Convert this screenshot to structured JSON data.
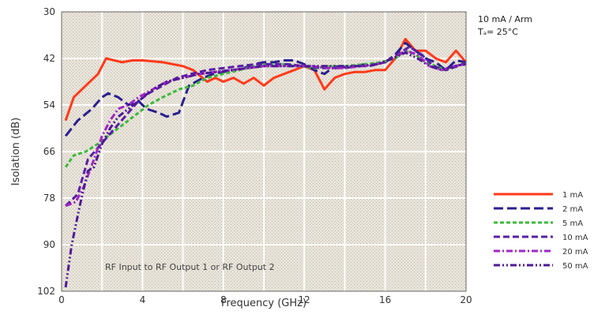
{
  "chart_data": {
    "type": "line",
    "xlabel": "Frequency (GHz)",
    "ylabel": "Isolation (dB)",
    "xlim": [
      0,
      20
    ],
    "ylim": [
      30,
      102
    ],
    "y_reversed": true,
    "x_ticks": [
      0,
      4,
      8,
      12,
      16,
      20
    ],
    "y_ticks": [
      30,
      42,
      54,
      66,
      78,
      90,
      102
    ],
    "grid": true,
    "legend_position": "right",
    "annotation": "RF Input to RF Output 1 or RF Output 2",
    "conditions": [
      "10 mA / Arm",
      "Tₐ= 25°C"
    ],
    "series": [
      {
        "name": "1 mA",
        "color": "#ff3a1a",
        "dash": "solid",
        "x": [
          0.2,
          0.6,
          1.2,
          1.8,
          2.2,
          3,
          3.5,
          4,
          5,
          6,
          6.5,
          7.2,
          7.6,
          8,
          8.5,
          9,
          9.5,
          10,
          10.5,
          11,
          11.5,
          12,
          12.5,
          13,
          13.5,
          14,
          14.5,
          15,
          15.5,
          16,
          16.5,
          17,
          17.5,
          18,
          18.5,
          19,
          19.5,
          20
        ],
        "y": [
          58,
          52,
          49,
          46,
          42,
          43,
          42.5,
          42.5,
          43,
          44,
          45,
          48,
          47,
          48,
          47,
          48.5,
          47,
          49,
          47,
          46,
          45,
          44,
          45,
          50,
          47,
          46,
          45.5,
          45.5,
          45,
          45,
          42,
          37,
          40,
          40,
          42,
          43,
          40,
          43
        ]
      },
      {
        "name": "2 mA",
        "color": "#2a1f8f",
        "dash": "long-dash",
        "x": [
          0.2,
          0.8,
          1.5,
          2,
          2.3,
          2.8,
          3.3,
          3.8,
          4.2,
          4.8,
          5.2,
          5.8,
          6.3,
          7,
          7.5,
          8,
          8.5,
          9,
          9.5,
          10,
          10.5,
          11,
          11.5,
          12,
          12.5,
          13,
          13.5,
          14,
          14.5,
          15,
          15.5,
          16,
          16.5,
          17,
          17.5,
          18,
          18.5,
          19,
          19.5,
          20
        ],
        "y": [
          62,
          58,
          55,
          52,
          51,
          52,
          54,
          53,
          55,
          56,
          57,
          56,
          49,
          47,
          46,
          45.5,
          45,
          44.5,
          43.5,
          43,
          43,
          42.5,
          42.5,
          43.5,
          45,
          46,
          44,
          44.5,
          44,
          43.5,
          43.5,
          43,
          41,
          38,
          40,
          42,
          43,
          45,
          42.5,
          43
        ]
      },
      {
        "name": "5 mA",
        "color": "#3cb93c",
        "dash": "short-dash",
        "x": [
          0.2,
          0.6,
          1.2,
          1.8,
          2.3,
          2.8,
          3.3,
          3.8,
          4.3,
          5,
          5.8,
          6.5,
          7.2,
          8,
          8.8,
          9.5,
          10.2,
          11,
          11.8,
          12.5,
          13.3,
          14,
          15,
          15.8,
          16.5,
          17,
          17.5,
          18,
          18.5,
          19,
          19.5,
          20
        ],
        "y": [
          70,
          67,
          66,
          64,
          62,
          60,
          58,
          56,
          54,
          52,
          50,
          49,
          47,
          46,
          45,
          44,
          43.5,
          43.5,
          44,
          44.5,
          44,
          44,
          43.5,
          43,
          42,
          40,
          41,
          43,
          44,
          45,
          44,
          43
        ]
      },
      {
        "name": "10 mA",
        "color": "#5a1fa6",
        "dash": "medium-dash",
        "x": [
          0.2,
          0.8,
          1.3,
          1.8,
          2.3,
          2.8,
          3.3,
          3.8,
          4.3,
          5,
          5.7,
          6.4,
          7.2,
          8,
          8.8,
          9.6,
          10.4,
          11.2,
          12,
          12.8,
          13.6,
          14.4,
          15.2,
          16,
          16.6,
          17.2,
          17.8,
          18.4,
          19,
          19.6,
          20
        ],
        "y": [
          80,
          77,
          68,
          65,
          62,
          59,
          56,
          53,
          51,
          49,
          47,
          46,
          45,
          44.5,
          44,
          43.5,
          43.5,
          43.5,
          44,
          44.5,
          44.5,
          44,
          44,
          43,
          41,
          39,
          41,
          44,
          45,
          44,
          43
        ]
      },
      {
        "name": "20 mA",
        "color": "#a226c4",
        "dash": "dash-dot",
        "x": [
          0.2,
          0.7,
          1.1,
          1.6,
          2,
          2.4,
          2.8,
          3.3,
          3.8,
          4.5,
          5.2,
          6,
          6.8,
          7.6,
          8.4,
          9.2,
          10,
          10.8,
          11.6,
          12.4,
          13.2,
          14,
          14.8,
          15.6,
          16.4,
          17,
          17.6,
          18.2,
          18.8,
          19.4,
          20
        ],
        "y": [
          80,
          79,
          75,
          68,
          62,
          58,
          55,
          54,
          52,
          50,
          48,
          47,
          46,
          45.5,
          45,
          44.5,
          44,
          44,
          44,
          44,
          44.5,
          44.5,
          44,
          43.5,
          42,
          40,
          41,
          44,
          45,
          44,
          43.5
        ]
      },
      {
        "name": "50 mA",
        "color": "#4e1a94",
        "dash": "dash-dot-dot",
        "x": [
          0.2,
          0.5,
          0.9,
          1.3,
          1.6,
          2,
          2.4,
          2.8,
          3.3,
          3.8,
          4.5,
          5.2,
          6,
          6.8,
          7.6,
          8.4,
          9.2,
          10,
          10.8,
          11.6,
          12.4,
          13.2,
          14,
          14.8,
          15.6,
          16.4,
          17,
          17.6,
          18.2,
          18.8,
          19.4,
          20
        ],
        "y": [
          101,
          90,
          80,
          71,
          70,
          64,
          60,
          57,
          55,
          53,
          50,
          48,
          47,
          46,
          45.5,
          45,
          44.5,
          44,
          44,
          44,
          44,
          44,
          44,
          44,
          43.5,
          42,
          40.5,
          42,
          44,
          45,
          44,
          43.5
        ]
      }
    ]
  }
}
